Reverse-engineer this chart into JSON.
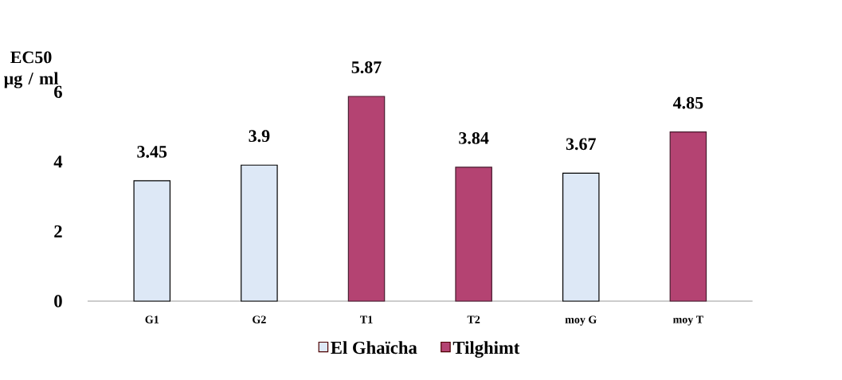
{
  "chart_data": {
    "type": "bar",
    "ylabel": "EC50 µg / ml",
    "categories": [
      "G1",
      "G2",
      "T1",
      "T2",
      "moy G",
      "moy T"
    ],
    "series": [
      {
        "name": "El Ghaïcha",
        "color": "#dde8f6",
        "values": [
          3.45,
          3.9,
          null,
          null,
          3.67,
          null
        ]
      },
      {
        "name": "Tilghimt",
        "color": "#b44372",
        "values": [
          null,
          null,
          5.87,
          3.84,
          null,
          4.85
        ]
      }
    ],
    "ylim": [
      0,
      6
    ],
    "yticks": [
      0,
      2,
      4,
      6
    ],
    "data_labels": true,
    "legend": "bottom"
  }
}
